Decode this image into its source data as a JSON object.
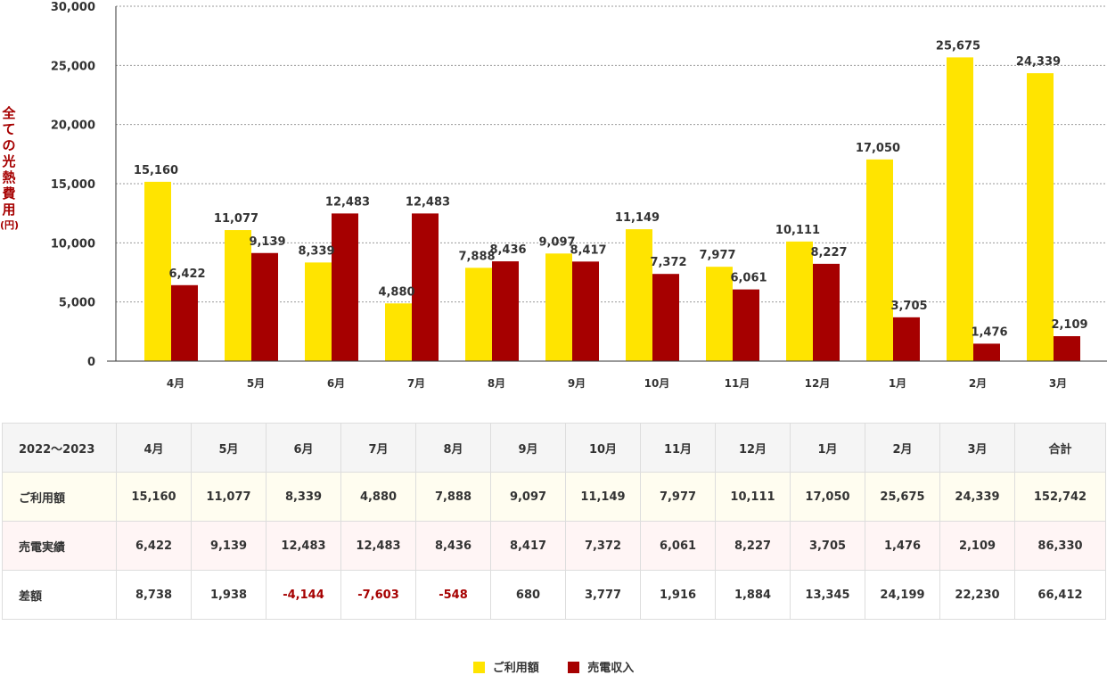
{
  "chart_data": {
    "type": "bar",
    "categories": [
      "4月",
      "5月",
      "6月",
      "7月",
      "8月",
      "9月",
      "10月",
      "11月",
      "12月",
      "1月",
      "2月",
      "3月"
    ],
    "series": [
      {
        "name": "ご利用額",
        "color": "#ffe400",
        "values": [
          15160,
          11077,
          8339,
          4880,
          7888,
          9097,
          11149,
          7977,
          10111,
          17050,
          25675,
          24339
        ]
      },
      {
        "name": "売電収入",
        "color": "#a60000",
        "values": [
          6422,
          9139,
          12483,
          12483,
          8436,
          8417,
          7372,
          6061,
          8227,
          3705,
          1476,
          2109
        ]
      }
    ],
    "ylabel": [
      "全",
      "て",
      "の",
      "光",
      "熱",
      "費",
      "用",
      "(円)"
    ],
    "ylim": [
      0,
      30000
    ],
    "yticks": [
      0,
      5000,
      10000,
      15000,
      20000,
      25000,
      30000
    ],
    "grid": true,
    "label_color": "#a60000",
    "axis_text_color": "#333333"
  },
  "table": {
    "corner": "2022〜2023",
    "headers": [
      "4月",
      "5月",
      "6月",
      "7月",
      "8月",
      "9月",
      "10月",
      "11月",
      "12月",
      "1月",
      "2月",
      "3月",
      "合計"
    ],
    "rows": {
      "usage": {
        "label": "ご利用額",
        "values": [
          "15,160",
          "11,077",
          "8,339",
          "4,880",
          "7,888",
          "9,097",
          "11,149",
          "7,977",
          "10,111",
          "17,050",
          "25,675",
          "24,339",
          "152,742"
        ]
      },
      "sale": {
        "label": "売電実績",
        "values": [
          "6,422",
          "9,139",
          "12,483",
          "12,483",
          "8,436",
          "8,417",
          "7,372",
          "6,061",
          "8,227",
          "3,705",
          "1,476",
          "2,109",
          "86,330"
        ]
      },
      "diff": {
        "label": "差額",
        "values": [
          "8,738",
          "1,938",
          "-4,144",
          "-7,603",
          "-548",
          "680",
          "3,777",
          "1,916",
          "1,884",
          "13,345",
          "24,199",
          "22,230",
          "66,412"
        ]
      }
    }
  },
  "legend": [
    {
      "label": "ご利用額",
      "color": "#ffe400"
    },
    {
      "label": "売電収入",
      "color": "#a60000"
    }
  ]
}
